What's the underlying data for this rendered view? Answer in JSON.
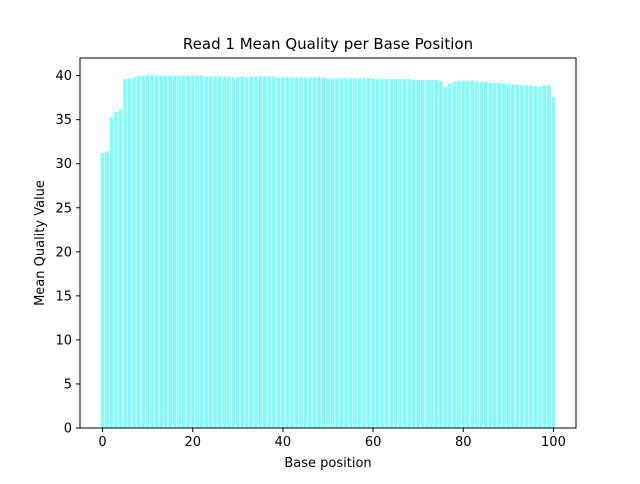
{
  "colors": {
    "bar": "#80ffff",
    "axes": "#000000",
    "background": "#ffffff"
  },
  "chart_data": {
    "type": "bar",
    "title": "Read 1 Mean Quality per Base Position",
    "xlabel": "Base position",
    "ylabel": "Mean Quality Value",
    "xlim": [
      -5,
      105
    ],
    "ylim": [
      0,
      42
    ],
    "xticks": [
      0,
      20,
      40,
      60,
      80,
      100
    ],
    "yticks": [
      0,
      5,
      10,
      15,
      20,
      25,
      30,
      35,
      40
    ],
    "grid": false,
    "legend": "none",
    "series": [
      {
        "x": [
          0,
          1,
          2,
          3,
          4,
          5,
          6,
          7,
          8,
          9,
          10,
          11,
          12,
          13,
          14,
          15,
          16,
          17,
          18,
          19,
          20,
          21,
          22,
          23,
          24,
          25,
          26,
          27,
          28,
          29,
          30,
          31,
          32,
          33,
          34,
          35,
          36,
          37,
          38,
          39,
          40,
          41,
          42,
          43,
          44,
          45,
          46,
          47,
          48,
          49,
          50,
          51,
          52,
          53,
          54,
          55,
          56,
          57,
          58,
          59,
          60,
          61,
          62,
          63,
          64,
          65,
          66,
          67,
          68,
          69,
          70,
          71,
          72,
          73,
          74,
          75,
          76,
          77,
          78,
          79,
          80,
          81,
          82,
          83,
          84,
          85,
          86,
          87,
          88,
          89,
          90,
          91,
          92,
          93,
          94,
          95,
          96,
          97,
          98,
          99,
          100
        ],
        "values": [
          31.2,
          31.4,
          35.3,
          35.9,
          36.1,
          39.6,
          39.7,
          39.8,
          40.0,
          40.0,
          40.1,
          40.1,
          40.0,
          40.0,
          40.0,
          40.0,
          40.0,
          40.0,
          40.0,
          40.0,
          40.0,
          40.0,
          40.0,
          39.9,
          39.9,
          39.9,
          39.9,
          39.9,
          39.9,
          39.8,
          39.8,
          39.9,
          39.8,
          39.9,
          39.9,
          39.9,
          39.9,
          39.9,
          39.9,
          39.8,
          39.8,
          39.8,
          39.8,
          39.8,
          39.8,
          39.8,
          39.8,
          39.8,
          39.8,
          39.8,
          39.7,
          39.7,
          39.7,
          39.7,
          39.7,
          39.7,
          39.7,
          39.7,
          39.7,
          39.7,
          39.7,
          39.6,
          39.6,
          39.6,
          39.6,
          39.6,
          39.6,
          39.6,
          39.6,
          39.5,
          39.5,
          39.5,
          39.5,
          39.5,
          39.5,
          39.4,
          38.7,
          39.1,
          39.3,
          39.4,
          39.4,
          39.4,
          39.4,
          39.3,
          39.3,
          39.3,
          39.2,
          39.2,
          39.2,
          39.1,
          39.1,
          39.0,
          39.0,
          38.9,
          38.9,
          38.9,
          38.8,
          38.7,
          38.9,
          38.9,
          37.6
        ]
      }
    ]
  }
}
